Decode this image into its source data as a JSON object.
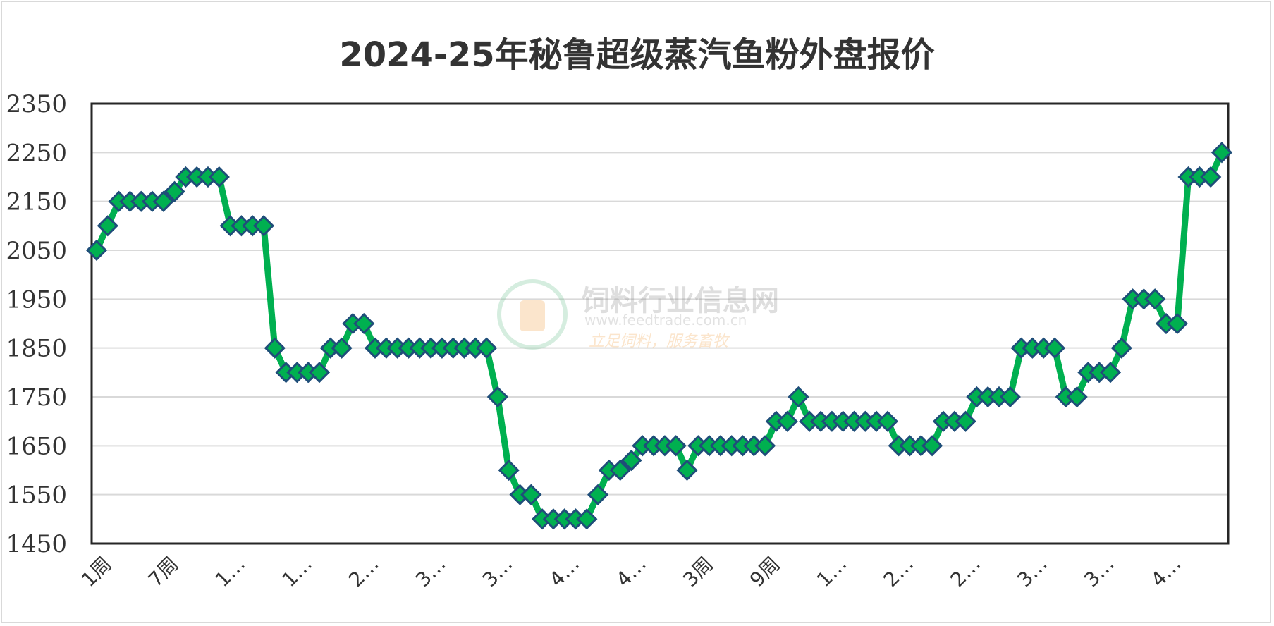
{
  "chart_data": {
    "type": "line",
    "title": "2024-25年秘鲁超级蒸汽鱼粉外盘报价",
    "xlabel": "",
    "ylabel": "",
    "ylim": [
      1450,
      2350
    ],
    "yticks": [
      1450,
      1550,
      1650,
      1750,
      1850,
      1950,
      2050,
      2150,
      2250,
      2350
    ],
    "grid": "horizontal",
    "legend": "none",
    "line_color": "#00b050",
    "marker_fill": "#00b050",
    "marker_edge": "#1f4e79",
    "x_tick_labels": [
      {
        "index": 0,
        "label": "1周"
      },
      {
        "index": 6,
        "label": "7周"
      },
      {
        "index": 12,
        "label": "1…"
      },
      {
        "index": 18,
        "label": "1…"
      },
      {
        "index": 24,
        "label": "2…"
      },
      {
        "index": 30,
        "label": "3…"
      },
      {
        "index": 36,
        "label": "3…"
      },
      {
        "index": 42,
        "label": "4…"
      },
      {
        "index": 48,
        "label": "4…"
      },
      {
        "index": 54,
        "label": "3周"
      },
      {
        "index": 60,
        "label": "9周"
      },
      {
        "index": 66,
        "label": "1…"
      },
      {
        "index": 72,
        "label": "2…"
      },
      {
        "index": 78,
        "label": "2…"
      },
      {
        "index": 84,
        "label": "3…"
      },
      {
        "index": 90,
        "label": "3…"
      },
      {
        "index": 96,
        "label": "4…"
      }
    ],
    "series": [
      {
        "values": [
          2050,
          2100,
          2150,
          2150,
          2150,
          2150,
          2150,
          2170,
          2200,
          2200,
          2200,
          2200,
          2100,
          2100,
          2100,
          2100,
          1850,
          1800,
          1800,
          1800,
          1800,
          1850,
          1850,
          1900,
          1900,
          1850,
          1850,
          1850,
          1850,
          1850,
          1850,
          1850,
          1850,
          1850,
          1850,
          1850,
          1750,
          1600,
          1550,
          1550,
          1500,
          1500,
          1500,
          1500,
          1500,
          1550,
          1600,
          1600,
          1620,
          1650,
          1650,
          1650,
          1650,
          1600,
          1650,
          1650,
          1650,
          1650,
          1650,
          1650,
          1650,
          1700,
          1700,
          1750,
          1700,
          1700,
          1700,
          1700,
          1700,
          1700,
          1700,
          1700,
          1650,
          1650,
          1650,
          1650,
          1700,
          1700,
          1700,
          1750,
          1750,
          1750,
          1750,
          1850,
          1850,
          1850,
          1850,
          1750,
          1750,
          1800,
          1800,
          1800,
          1850,
          1950,
          1950,
          1950,
          1900,
          1900,
          2200,
          2200,
          2200,
          2250
        ]
      }
    ]
  },
  "watermark": {
    "name": "饲料行业信息网",
    "url": "www.feedtrade.com.cn",
    "slogan": "立足饲料，服务畜牧"
  }
}
